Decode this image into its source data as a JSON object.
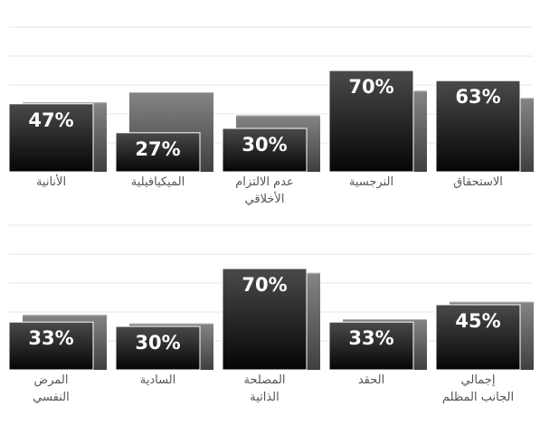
{
  "chart_data": [
    {
      "type": "bar",
      "categories": [
        [
          "الأنانية"
        ],
        [
          "الميكيافيلية"
        ],
        [
          "عدم الالتزام",
          "الأخلاقي"
        ],
        [
          "النرجسية"
        ],
        [
          "الاستحقاق"
        ]
      ],
      "series": [
        {
          "values": [
            47,
            27,
            30,
            70,
            63
          ]
        },
        {
          "values": [
            48,
            55,
            39,
            56,
            51
          ]
        }
      ],
      "value_labels": [
        "47%",
        "27%",
        "30%",
        "70%",
        "63%"
      ],
      "ylim": [
        0,
        100
      ],
      "grid": true,
      "colors": {
        "front_top": "#4a4a4a",
        "front_bottom": "#050505",
        "back_top": "#858585",
        "back_bottom": "#3f3f3f"
      }
    },
    {
      "type": "bar",
      "categories": [
        [
          "المرض",
          "النفسي"
        ],
        [
          "السادية"
        ],
        [
          "المصلحة",
          "الذاتية"
        ],
        [
          "الحقد"
        ],
        [
          "إجمالي",
          "الجانب المظلم"
        ]
      ],
      "series": [
        {
          "values": [
            33,
            30,
            70,
            33,
            45
          ]
        },
        {
          "values": [
            38,
            32,
            67,
            35,
            47
          ]
        }
      ],
      "value_labels": [
        "33%",
        "30%",
        "70%",
        "33%",
        "45%"
      ],
      "ylim": [
        0,
        100
      ],
      "grid": true,
      "colors": {
        "front_top": "#4a4a4a",
        "front_bottom": "#050505",
        "back_top": "#858585",
        "back_bottom": "#3f3f3f"
      }
    }
  ]
}
